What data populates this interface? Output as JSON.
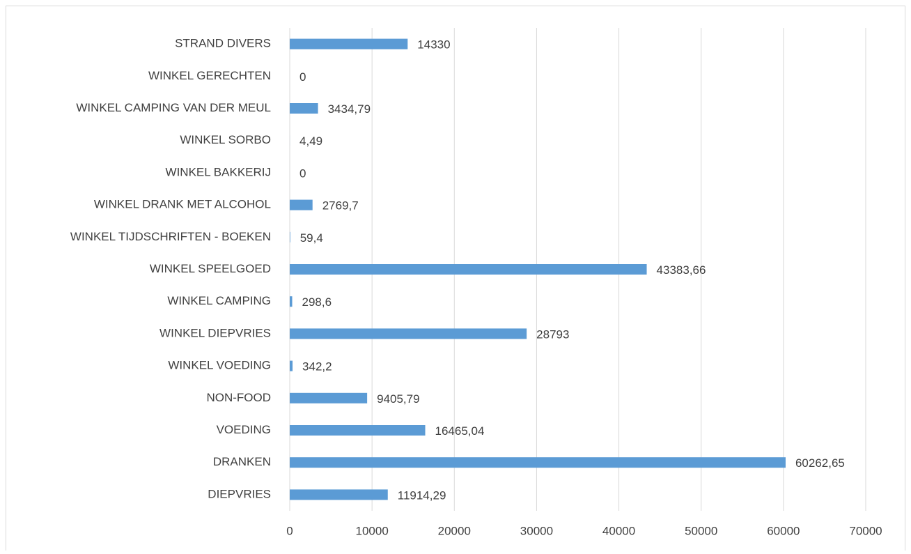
{
  "chart_data": {
    "type": "bar",
    "orientation": "horizontal",
    "categories": [
      "STRAND DIVERS",
      "WINKEL GERECHTEN",
      "WINKEL CAMPING VAN DER MEUL",
      "WINKEL SORBO",
      "WINKEL BAKKERIJ",
      "WINKEL DRANK MET ALCOHOL",
      "WINKEL TIJDSCHRIFTEN - BOEKEN",
      "WINKEL SPEELGOED",
      "WINKEL CAMPING",
      "WINKEL DIEPVRIES",
      "WINKEL VOEDING",
      "NON-FOOD",
      "VOEDING",
      "DRANKEN",
      "DIEPVRIES"
    ],
    "values": [
      14330,
      0,
      3434.79,
      4.49,
      0,
      2769.7,
      59.4,
      43383.66,
      298.6,
      28793,
      342.2,
      9405.79,
      16465.04,
      60262.65,
      11914.29
    ],
    "value_labels": [
      "14330",
      "0",
      "3434,79",
      "4,49",
      "0",
      "2769,7",
      "59,4",
      "43383,66",
      "298,6",
      "28793",
      "342,2",
      "9405,79",
      "16465,04",
      "60262,65",
      "11914,29"
    ],
    "color": "#5b9bd5",
    "xlim": [
      0,
      70000
    ],
    "xticks": [
      0,
      10000,
      20000,
      30000,
      40000,
      50000,
      60000,
      70000
    ],
    "grid": true
  }
}
